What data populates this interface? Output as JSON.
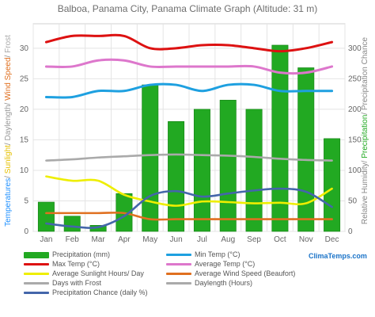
{
  "title": "Balboa, Panama City, Panama Climate Graph (Altitude: 31 m)",
  "site_tag": "ClimaTemps.com",
  "chart_data": {
    "type": "bar",
    "categories": [
      "Jan",
      "Feb",
      "Mar",
      "Apr",
      "May",
      "Jun",
      "Jul",
      "Aug",
      "Sep",
      "Oct",
      "Nov",
      "Dec"
    ],
    "left_axis": {
      "ticks": [
        0,
        5,
        10,
        15,
        20,
        25,
        30
      ],
      "range": [
        0,
        34
      ]
    },
    "right_axis": {
      "ticks": [
        0,
        50,
        100,
        150,
        200,
        250,
        300
      ],
      "range": [
        0,
        340
      ]
    },
    "left_axis_label_parts": [
      {
        "text": "Temperatures",
        "color": "#1e90ff"
      },
      {
        "text": "/ ",
        "color": "#888888"
      },
      {
        "text": "Sunlight",
        "color": "#e6c000"
      },
      {
        "text": "/ ",
        "color": "#888888"
      },
      {
        "text": "Daylength",
        "color": "#999999"
      },
      {
        "text": "/ ",
        "color": "#888888"
      },
      {
        "text": "Wind Speed",
        "color": "#e07020"
      },
      {
        "text": "/ ",
        "color": "#888888"
      },
      {
        "text": "Frost",
        "color": "#aaaaaa"
      }
    ],
    "right_axis_label_parts": [
      {
        "text": "Relative Humidity",
        "color": "#888888"
      },
      {
        "text": "/ ",
        "color": "#888888"
      },
      {
        "text": "Precipitation",
        "color": "#22aa22"
      },
      {
        "text": "/ ",
        "color": "#888888"
      },
      {
        "text": "Precipitation Chance",
        "color": "#888888"
      }
    ],
    "bars": {
      "name": "Precipitation (mm)",
      "axis": "right",
      "color": "#22a922",
      "values": [
        48,
        25,
        10,
        62,
        240,
        180,
        200,
        215,
        200,
        305,
        268,
        152
      ]
    },
    "series": [
      {
        "name": "Max Temp (°C)",
        "axis": "left",
        "color": "#dd1111",
        "values": [
          31,
          32,
          32,
          32,
          30,
          30,
          30.5,
          30.5,
          30,
          29.5,
          30,
          31
        ]
      },
      {
        "name": "Average Temp (°C)",
        "axis": "left",
        "color": "#dd77cc",
        "values": [
          27,
          27,
          28,
          28,
          27,
          27,
          27,
          27,
          27,
          26,
          26,
          27
        ]
      },
      {
        "name": "Min Temp (°C)",
        "axis": "left",
        "color": "#1ea0e0",
        "values": [
          22,
          22,
          23,
          23,
          24,
          24,
          23,
          24,
          24,
          23,
          23,
          23
        ]
      },
      {
        "name": "Daylength (Hours)",
        "axis": "left",
        "color": "#aaaaaa",
        "values": [
          11.6,
          11.8,
          12.1,
          12.3,
          12.5,
          12.6,
          12.5,
          12.4,
          12.2,
          11.9,
          11.7,
          11.6
        ]
      },
      {
        "name": "Average Sunlight Hours/ Day",
        "axis": "left",
        "color": "#eeee00",
        "values": [
          9,
          8.3,
          8.3,
          6,
          4.9,
          4.2,
          4.9,
          4.8,
          4.6,
          4.7,
          4.6,
          7
        ]
      },
      {
        "name": "Precipitation Chance (daily %)",
        "axis": "right",
        "color": "#4466aa",
        "values": [
          13,
          8,
          7,
          25,
          58,
          66,
          57,
          62,
          67,
          70,
          65,
          40
        ]
      },
      {
        "name": "Average Wind Speed (Beaufort)",
        "axis": "left",
        "color": "#e07020",
        "values": [
          3,
          3,
          3,
          3,
          2,
          2,
          2,
          2,
          2,
          2,
          2,
          2
        ]
      },
      {
        "name": "Days with Frost",
        "axis": "left",
        "color": "#aaaaaa",
        "values": [
          0,
          0,
          0,
          0,
          0,
          0,
          0,
          0,
          0,
          0,
          0,
          0
        ]
      }
    ],
    "grid": true,
    "legend": [
      {
        "name": "Precipitation (mm)",
        "color": "#22a922",
        "kind": "bar"
      },
      {
        "name": "Min Temp (°C)",
        "color": "#1ea0e0",
        "kind": "line"
      },
      {
        "name": "Max Temp (°C)",
        "color": "#dd1111",
        "kind": "line"
      },
      {
        "name": "Average Temp (°C)",
        "color": "#dd77cc",
        "kind": "line"
      },
      {
        "name": "Average Sunlight Hours/ Day",
        "color": "#eeee00",
        "kind": "line"
      },
      {
        "name": "Average Wind Speed (Beaufort)",
        "color": "#e07020",
        "kind": "line"
      },
      {
        "name": "Days with Frost",
        "color": "#aaaaaa",
        "kind": "line"
      },
      {
        "name": "Daylength (Hours)",
        "color": "#aaaaaa",
        "kind": "line"
      },
      {
        "name": "Precipitation Chance (daily %)",
        "color": "#4466aa",
        "kind": "line"
      }
    ]
  }
}
